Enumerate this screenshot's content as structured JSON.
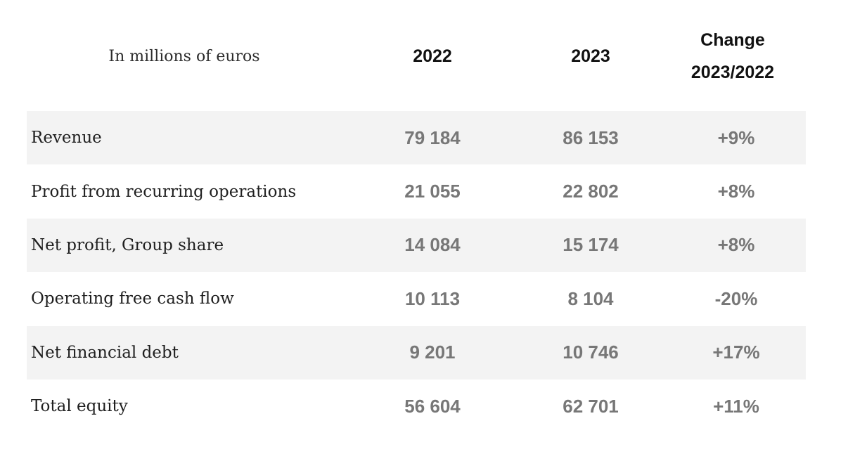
{
  "table": {
    "header": {
      "label": "In millions of euros",
      "year1": "2022",
      "year2": "2023",
      "change_line1": "Change",
      "change_line2": "2023/2022"
    },
    "rows": [
      {
        "label": "Revenue",
        "v2022": "79 184",
        "v2023": "86 153",
        "change": "+9%"
      },
      {
        "label": "Profit from recurring operations",
        "v2022": "21 055",
        "v2023": "22 802",
        "change": "+8%"
      },
      {
        "label": "Net profit, Group share",
        "v2022": "14 084",
        "v2023": "15 174",
        "change": "+8%"
      },
      {
        "label": "Operating free cash flow",
        "v2022": "10 113",
        "v2023": "8 104",
        "change": "-20%"
      },
      {
        "label": "Net financial debt",
        "v2022": "9 201",
        "v2023": "10 746",
        "change": "+17%"
      },
      {
        "label": "Total equity",
        "v2022": "56 604",
        "v2023": "62 701",
        "change": "+11%"
      }
    ]
  },
  "colors": {
    "row_shade": "#f3f3f3",
    "number_text": "#777777",
    "header_text": "#111111"
  }
}
